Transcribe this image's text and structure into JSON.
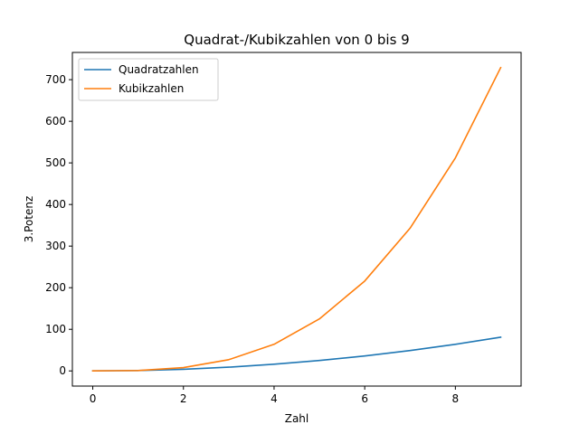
{
  "chart_data": {
    "type": "line",
    "title": "Quadrat-/Kubikzahlen von 0 bis 9",
    "xlabel": "Zahl",
    "ylabel": "3.Potenz",
    "x": [
      0,
      1,
      2,
      3,
      4,
      5,
      6,
      7,
      8,
      9
    ],
    "xlim": [
      -0.45,
      9.45
    ],
    "ylim": [
      -36.45,
      765.45
    ],
    "xticks": [
      0,
      2,
      4,
      6,
      8
    ],
    "yticks": [
      0,
      100,
      200,
      300,
      400,
      500,
      600,
      700
    ],
    "grid": false,
    "legend_position": "top-left",
    "series": [
      {
        "name": "Quadratzahlen",
        "color": "#1f77b4",
        "values": [
          0,
          1,
          4,
          9,
          16,
          25,
          36,
          49,
          64,
          81
        ]
      },
      {
        "name": "Kubikzahlen",
        "color": "#ff7f0e",
        "values": [
          0,
          1,
          8,
          27,
          64,
          125,
          216,
          343,
          512,
          729
        ]
      }
    ]
  }
}
